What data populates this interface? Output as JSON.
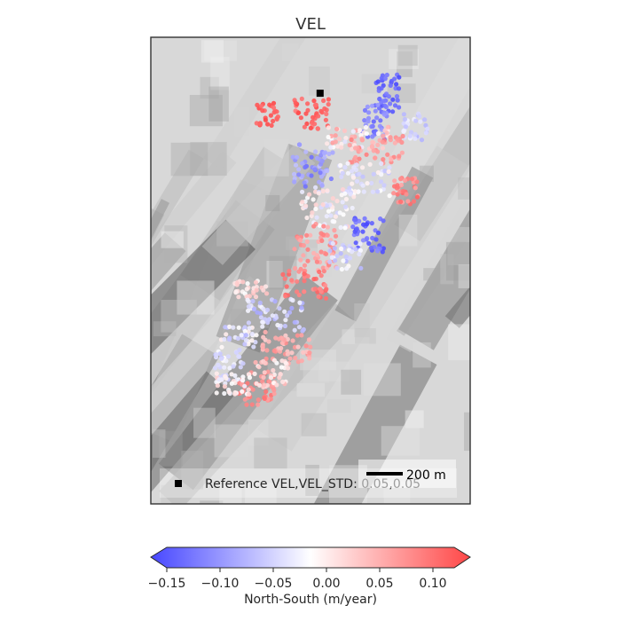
{
  "chart_data": {
    "type": "scatter",
    "title": "VEL",
    "colormap": "bwr",
    "clim": [
      -0.15,
      0.12
    ],
    "background": "grayscale hillshade",
    "legend": {
      "marker": "black square",
      "text": "Reference VEL,VEL_STD: 0.05,0.05",
      "placement": "bottom-left"
    },
    "scalebar": {
      "text": "200 m",
      "placement": "bottom-right"
    },
    "colorbar": {
      "label": "North-South (m/year)",
      "ticks": [
        -0.15,
        -0.1,
        -0.05,
        0.0,
        0.05,
        0.1
      ],
      "tick_labels": [
        "−0.15",
        "−0.10",
        "−0.05",
        "0.00",
        "0.05",
        "0.10"
      ],
      "extend": "both"
    },
    "reference_point": {
      "x": 0.53,
      "y": 0.88
    },
    "xlim": [
      0,
      1
    ],
    "ylim": [
      0,
      1
    ],
    "clusters": [
      {
        "x": [
          0.7,
          0.78
        ],
        "y": [
          0.84,
          0.92
        ],
        "v": [
          -0.15,
          -0.11
        ]
      },
      {
        "x": [
          0.66,
          0.74
        ],
        "y": [
          0.78,
          0.86
        ],
        "v": [
          -0.13,
          -0.08
        ]
      },
      {
        "x": [
          0.79,
          0.87
        ],
        "y": [
          0.78,
          0.84
        ],
        "v": [
          -0.07,
          -0.02
        ]
      },
      {
        "x": [
          0.33,
          0.4
        ],
        "y": [
          0.81,
          0.86
        ],
        "v": [
          0.09,
          0.12
        ]
      },
      {
        "x": [
          0.45,
          0.56
        ],
        "y": [
          0.8,
          0.87
        ],
        "v": [
          0.08,
          0.12
        ]
      },
      {
        "x": [
          0.55,
          0.75
        ],
        "y": [
          0.76,
          0.81
        ],
        "v": [
          -0.04,
          0.06
        ]
      },
      {
        "x": [
          0.62,
          0.79
        ],
        "y": [
          0.73,
          0.79
        ],
        "v": [
          0.04,
          0.08
        ]
      },
      {
        "x": [
          0.44,
          0.57
        ],
        "y": [
          0.68,
          0.77
        ],
        "v": [
          -0.12,
          -0.06
        ]
      },
      {
        "x": [
          0.59,
          0.75
        ],
        "y": [
          0.66,
          0.73
        ],
        "v": [
          -0.06,
          0.0
        ]
      },
      {
        "x": [
          0.76,
          0.84
        ],
        "y": [
          0.64,
          0.7
        ],
        "v": [
          0.05,
          0.1
        ]
      },
      {
        "x": [
          0.47,
          0.64
        ],
        "y": [
          0.59,
          0.68
        ],
        "v": [
          -0.05,
          0.02
        ]
      },
      {
        "x": [
          0.63,
          0.73
        ],
        "y": [
          0.54,
          0.62
        ],
        "v": [
          -0.15,
          -0.1
        ]
      },
      {
        "x": [
          0.45,
          0.58
        ],
        "y": [
          0.5,
          0.6
        ],
        "v": [
          0.04,
          0.08
        ]
      },
      {
        "x": [
          0.56,
          0.66
        ],
        "y": [
          0.5,
          0.56
        ],
        "v": [
          -0.07,
          -0.01
        ]
      },
      {
        "x": [
          0.41,
          0.55
        ],
        "y": [
          0.44,
          0.5
        ],
        "v": [
          0.06,
          0.1
        ]
      },
      {
        "x": [
          0.26,
          0.37
        ],
        "y": [
          0.44,
          0.48
        ],
        "v": [
          -0.02,
          0.03
        ]
      },
      {
        "x": [
          0.3,
          0.48
        ],
        "y": [
          0.37,
          0.44
        ],
        "v": [
          -0.08,
          -0.02
        ]
      },
      {
        "x": [
          0.22,
          0.35
        ],
        "y": [
          0.33,
          0.38
        ],
        "v": [
          -0.07,
          0.0
        ]
      },
      {
        "x": [
          0.35,
          0.5
        ],
        "y": [
          0.3,
          0.37
        ],
        "v": [
          0.02,
          0.07
        ]
      },
      {
        "x": [
          0.2,
          0.29
        ],
        "y": [
          0.26,
          0.33
        ],
        "v": [
          -0.06,
          -0.01
        ]
      },
      {
        "x": [
          0.27,
          0.39
        ],
        "y": [
          0.21,
          0.29
        ],
        "v": [
          0.05,
          0.09
        ]
      },
      {
        "x": [
          0.32,
          0.43
        ],
        "y": [
          0.25,
          0.31
        ],
        "v": [
          -0.02,
          0.04
        ]
      },
      {
        "x": [
          0.2,
          0.31
        ],
        "y": [
          0.23,
          0.28
        ],
        "v": [
          -0.03,
          0.02
        ]
      }
    ]
  }
}
